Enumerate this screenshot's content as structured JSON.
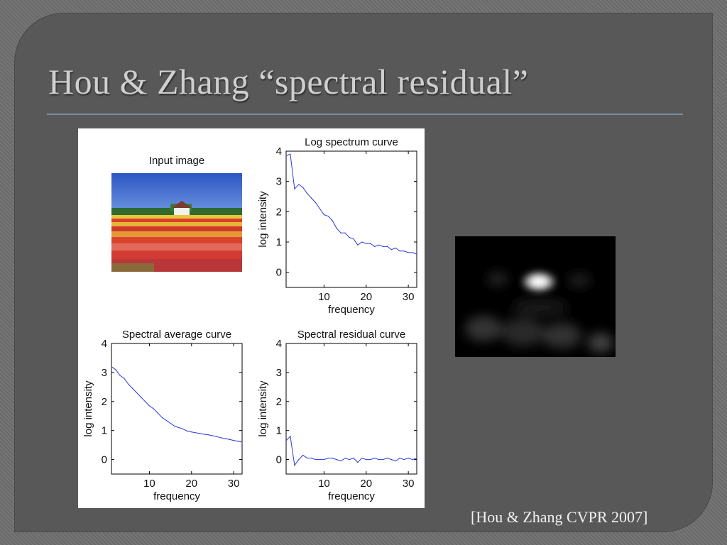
{
  "slide": {
    "title": "Hou & Zhang “spectral residual”",
    "citation": "[Hou & Zhang CVPR 2007]"
  },
  "figure": {
    "input_title": "Input image"
  },
  "chart_data": [
    {
      "type": "line",
      "title": "Log spectrum curve",
      "xlabel": "frequency",
      "ylabel": "log intensity",
      "xlim": [
        1,
        32
      ],
      "ylim": [
        -0.5,
        4
      ],
      "xticks": [
        10,
        20,
        30
      ],
      "yticks": [
        0,
        1,
        2,
        3,
        4
      ],
      "series_color": "#2b3bd6",
      "x": [
        1,
        2,
        3,
        4,
        5,
        6,
        7,
        8,
        9,
        10,
        11,
        12,
        13,
        14,
        15,
        16,
        17,
        18,
        19,
        20,
        21,
        22,
        23,
        24,
        25,
        26,
        27,
        28,
        29,
        30,
        31,
        32
      ],
      "values": [
        3.85,
        3.9,
        2.75,
        2.9,
        2.8,
        2.6,
        2.45,
        2.3,
        2.1,
        1.9,
        1.85,
        1.7,
        1.45,
        1.3,
        1.3,
        1.15,
        1.1,
        0.9,
        1.0,
        0.95,
        0.95,
        0.85,
        0.9,
        0.85,
        0.85,
        0.75,
        0.8,
        0.7,
        0.7,
        0.65,
        0.65,
        0.6
      ]
    },
    {
      "type": "line",
      "title": "Spectral average curve",
      "xlabel": "frequency",
      "ylabel": "log intensity",
      "xlim": [
        1,
        32
      ],
      "ylim": [
        -0.5,
        4
      ],
      "xticks": [
        10,
        20,
        30
      ],
      "yticks": [
        0,
        1,
        2,
        3,
        4
      ],
      "series_color": "#2b3bd6",
      "x": [
        1,
        2,
        3,
        4,
        5,
        6,
        7,
        8,
        9,
        10,
        11,
        12,
        13,
        14,
        15,
        16,
        17,
        18,
        19,
        20,
        21,
        22,
        23,
        24,
        25,
        26,
        27,
        28,
        29,
        30,
        31,
        32
      ],
      "values": [
        3.2,
        3.1,
        2.9,
        2.8,
        2.6,
        2.45,
        2.3,
        2.15,
        2.0,
        1.85,
        1.75,
        1.6,
        1.45,
        1.35,
        1.25,
        1.15,
        1.1,
        1.05,
        0.98,
        0.95,
        0.92,
        0.9,
        0.87,
        0.85,
        0.82,
        0.79,
        0.75,
        0.72,
        0.69,
        0.66,
        0.63,
        0.6
      ]
    },
    {
      "type": "line",
      "title": "Spectral residual curve",
      "xlabel": "frequency",
      "ylabel": "log intensity",
      "xlim": [
        1,
        32
      ],
      "ylim": [
        -0.5,
        4
      ],
      "xticks": [
        10,
        20,
        30
      ],
      "yticks": [
        0,
        1,
        2,
        3,
        4
      ],
      "series_color": "#2b3bd6",
      "x": [
        1,
        2,
        3,
        4,
        5,
        6,
        7,
        8,
        9,
        10,
        11,
        12,
        13,
        14,
        15,
        16,
        17,
        18,
        19,
        20,
        21,
        22,
        23,
        24,
        25,
        26,
        27,
        28,
        29,
        30,
        31,
        32
      ],
      "values": [
        0.65,
        0.8,
        -0.2,
        0.0,
        0.15,
        0.05,
        0.05,
        0.0,
        0.0,
        0.0,
        0.05,
        0.05,
        0.0,
        -0.05,
        0.05,
        0.0,
        0.05,
        -0.1,
        0.05,
        0.0,
        0.0,
        0.05,
        0.0,
        0.0,
        0.05,
        0.0,
        -0.05,
        0.05,
        0.0,
        0.05,
        0.0,
        0.05
      ]
    }
  ]
}
